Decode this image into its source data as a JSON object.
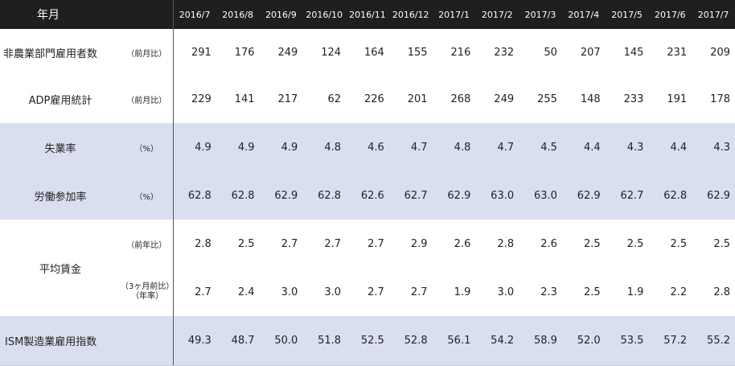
{
  "header": {
    "title": "年月",
    "months": [
      "2016/7",
      "2016/8",
      "2016/9",
      "2016/10",
      "2016/11",
      "2016/12",
      "2017/1",
      "2017/2",
      "2017/3",
      "2017/4",
      "2017/5",
      "2017/6",
      "2017/7"
    ]
  },
  "rows": {
    "nfp": {
      "label": "非農業部門雇用者数",
      "unit": "（前月比）",
      "values": [
        "291",
        "176",
        "249",
        "124",
        "164",
        "155",
        "216",
        "232",
        "50",
        "207",
        "145",
        "231",
        "209"
      ]
    },
    "adp": {
      "label": "ADP雇用統計",
      "unit": "（前月比）",
      "values": [
        "229",
        "141",
        "217",
        "62",
        "226",
        "201",
        "268",
        "249",
        "255",
        "148",
        "233",
        "191",
        "178"
      ]
    },
    "unemployment": {
      "label": "失業率",
      "unit": "（%）",
      "values": [
        "4.9",
        "4.9",
        "4.9",
        "4.8",
        "4.6",
        "4.7",
        "4.8",
        "4.7",
        "4.5",
        "4.4",
        "4.3",
        "4.4",
        "4.3"
      ]
    },
    "participation": {
      "label": "労働参加率",
      "unit": "（%）",
      "values": [
        "62.8",
        "62.8",
        "62.9",
        "62.8",
        "62.6",
        "62.7",
        "62.9",
        "63.0",
        "63.0",
        "62.9",
        "62.7",
        "62.8",
        "62.9"
      ]
    },
    "wages": {
      "label": "平均賃金",
      "yoy": {
        "unit": "（前年比）",
        "values": [
          "2.8",
          "2.5",
          "2.7",
          "2.7",
          "2.7",
          "2.9",
          "2.6",
          "2.8",
          "2.6",
          "2.5",
          "2.5",
          "2.5",
          "2.5"
        ]
      },
      "three_month": {
        "unit_line1": "（3ヶ月前比）",
        "unit_line2": "（年率）",
        "values": [
          "2.7",
          "2.4",
          "3.0",
          "3.0",
          "2.7",
          "2.7",
          "1.9",
          "3.0",
          "2.3",
          "2.5",
          "1.9",
          "2.2",
          "2.8"
        ]
      }
    },
    "ism": {
      "label": "ISM製造業雇用指数",
      "values": [
        "49.3",
        "48.7",
        "50.0",
        "51.8",
        "52.5",
        "52.8",
        "56.1",
        "54.2",
        "58.9",
        "52.0",
        "53.5",
        "57.2",
        "55.2"
      ]
    }
  },
  "colors": {
    "header_bg": "#1f1f1f",
    "band_bg": "#dadff0"
  }
}
